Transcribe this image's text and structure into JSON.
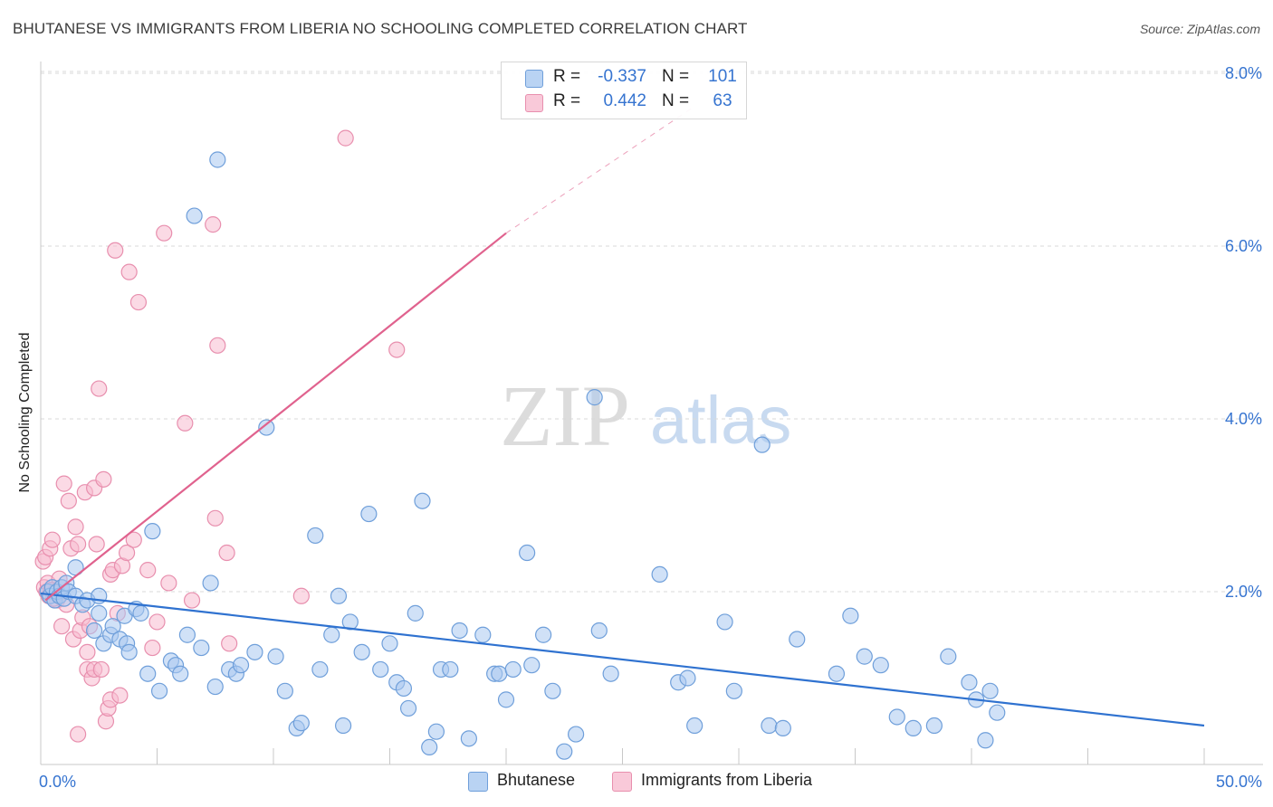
{
  "header": {
    "title": "BHUTANESE VS IMMIGRANTS FROM LIBERIA NO SCHOOLING COMPLETED CORRELATION CHART",
    "source": "Source: ZipAtlas.com"
  },
  "watermark": {
    "zip": "ZIP",
    "atlas": "atlas"
  },
  "legend_top": {
    "rows": [
      {
        "r_label": "R =",
        "r_value": "-0.337",
        "n_label": "N =",
        "n_value": "101"
      },
      {
        "r_label": "R =",
        "r_value": "0.442",
        "n_label": "N =",
        "n_value": "63"
      }
    ]
  },
  "legend_bottom": {
    "series1": "Bhutanese",
    "series2": "Immigrants from Liberia"
  },
  "colors": {
    "blue_fill": "#a9c8f0",
    "blue_stroke": "#6f9fda",
    "blue_line": "#2f72d0",
    "pink_fill": "#f7bcd0",
    "pink_stroke": "#e88fae",
    "pink_line": "#e0628e",
    "tick_text": "#3674d0",
    "grid": "#d9d9d9"
  },
  "chart_data": {
    "type": "scatter",
    "title": "BHUTANESE VS IMMIGRANTS FROM LIBERIA NO SCHOOLING COMPLETED CORRELATION CHART",
    "xlabel": "",
    "ylabel": "No Schooling Completed",
    "xlim": [
      0,
      50
    ],
    "ylim": [
      0,
      8.4
    ],
    "x_tick_labels": [
      "0.0%",
      "50.0%"
    ],
    "y_ticks": [
      2,
      4,
      6,
      8
    ],
    "y_tick_labels": [
      "2.0%",
      "4.0%",
      "6.0%",
      "8.0%"
    ],
    "grid": true,
    "legend_position": "top-center",
    "series": [
      {
        "name": "Bhutanese",
        "r": -0.337,
        "n": 101,
        "trend": {
          "x": [
            0,
            50
          ],
          "y": [
            1.98,
            0.45
          ]
        },
        "points": [
          [
            0.3,
            2.0
          ],
          [
            0.4,
            1.95
          ],
          [
            0.5,
            2.05
          ],
          [
            0.6,
            1.9
          ],
          [
            0.7,
            2.0
          ],
          [
            0.8,
            1.95
          ],
          [
            0.9,
            2.05
          ],
          [
            1.0,
            1.92
          ],
          [
            1.1,
            2.1
          ],
          [
            1.2,
            2.0
          ],
          [
            1.5,
            2.28
          ],
          [
            1.5,
            1.95
          ],
          [
            1.8,
            1.85
          ],
          [
            2.0,
            1.9
          ],
          [
            2.3,
            1.55
          ],
          [
            2.5,
            1.75
          ],
          [
            2.5,
            1.95
          ],
          [
            2.7,
            1.4
          ],
          [
            3.0,
            1.5
          ],
          [
            3.1,
            1.6
          ],
          [
            3.4,
            1.45
          ],
          [
            3.6,
            1.72
          ],
          [
            3.7,
            1.4
          ],
          [
            3.8,
            1.3
          ],
          [
            4.1,
            1.8
          ],
          [
            4.3,
            1.75
          ],
          [
            4.6,
            1.05
          ],
          [
            4.8,
            2.7
          ],
          [
            5.1,
            0.85
          ],
          [
            5.6,
            1.2
          ],
          [
            5.8,
            1.15
          ],
          [
            6.0,
            1.05
          ],
          [
            6.3,
            1.5
          ],
          [
            6.6,
            6.35
          ],
          [
            6.9,
            1.35
          ],
          [
            7.3,
            2.1
          ],
          [
            7.5,
            0.9
          ],
          [
            7.6,
            7.0
          ],
          [
            8.1,
            1.1
          ],
          [
            8.4,
            1.05
          ],
          [
            8.6,
            1.15
          ],
          [
            9.2,
            1.3
          ],
          [
            9.7,
            3.9
          ],
          [
            10.1,
            1.25
          ],
          [
            10.5,
            0.85
          ],
          [
            11.0,
            0.42
          ],
          [
            11.2,
            0.48
          ],
          [
            11.8,
            2.65
          ],
          [
            12.0,
            1.1
          ],
          [
            12.5,
            1.5
          ],
          [
            12.8,
            1.95
          ],
          [
            13.0,
            0.45
          ],
          [
            13.3,
            1.65
          ],
          [
            13.8,
            1.3
          ],
          [
            14.1,
            2.9
          ],
          [
            14.6,
            1.1
          ],
          [
            15.0,
            1.4
          ],
          [
            15.3,
            0.95
          ],
          [
            15.6,
            0.88
          ],
          [
            15.8,
            0.65
          ],
          [
            16.1,
            1.75
          ],
          [
            16.4,
            3.05
          ],
          [
            16.7,
            0.2
          ],
          [
            17.0,
            0.38
          ],
          [
            17.2,
            1.1
          ],
          [
            17.6,
            1.1
          ],
          [
            18.0,
            1.55
          ],
          [
            18.4,
            0.3
          ],
          [
            19.0,
            1.5
          ],
          [
            19.5,
            1.05
          ],
          [
            19.7,
            1.05
          ],
          [
            20.0,
            0.75
          ],
          [
            20.3,
            1.1
          ],
          [
            20.9,
            2.45
          ],
          [
            21.1,
            1.15
          ],
          [
            21.6,
            1.5
          ],
          [
            22.0,
            0.85
          ],
          [
            22.5,
            0.15
          ],
          [
            23.0,
            0.35
          ],
          [
            23.8,
            4.25
          ],
          [
            24.0,
            1.55
          ],
          [
            24.5,
            1.05
          ],
          [
            26.6,
            2.2
          ],
          [
            27.4,
            0.95
          ],
          [
            27.8,
            1.0
          ],
          [
            28.1,
            0.45
          ],
          [
            29.4,
            1.65
          ],
          [
            29.8,
            0.85
          ],
          [
            31.0,
            3.7
          ],
          [
            31.3,
            0.45
          ],
          [
            31.9,
            0.42
          ],
          [
            32.5,
            1.45
          ],
          [
            34.2,
            1.05
          ],
          [
            34.8,
            1.72
          ],
          [
            35.4,
            1.25
          ],
          [
            36.1,
            1.15
          ],
          [
            36.8,
            0.55
          ],
          [
            37.5,
            0.42
          ],
          [
            38.4,
            0.45
          ],
          [
            39.0,
            1.25
          ],
          [
            39.9,
            0.95
          ],
          [
            40.2,
            0.75
          ],
          [
            40.6,
            0.28
          ],
          [
            40.8,
            0.85
          ],
          [
            41.1,
            0.6
          ]
        ]
      },
      {
        "name": "Immigrants from Liberia",
        "r": 0.442,
        "n": 63,
        "trend": {
          "x": [
            0.2,
            20.0
          ],
          "y": [
            1.9,
            6.15
          ]
        },
        "trend_dashed": {
          "x": [
            20.0,
            28.0
          ],
          "y": [
            6.15,
            7.6
          ]
        },
        "points": [
          [
            0.1,
            2.35
          ],
          [
            0.15,
            2.05
          ],
          [
            0.2,
            2.4
          ],
          [
            0.25,
            2.0
          ],
          [
            0.3,
            2.1
          ],
          [
            0.35,
            1.95
          ],
          [
            0.4,
            2.5
          ],
          [
            0.5,
            2.6
          ],
          [
            0.6,
            2.0
          ],
          [
            0.7,
            1.9
          ],
          [
            0.8,
            2.15
          ],
          [
            0.9,
            1.6
          ],
          [
            1.0,
            3.25
          ],
          [
            1.1,
            1.85
          ],
          [
            1.2,
            3.05
          ],
          [
            1.3,
            2.5
          ],
          [
            1.4,
            1.45
          ],
          [
            1.5,
            2.75
          ],
          [
            1.6,
            2.55
          ],
          [
            1.6,
            0.35
          ],
          [
            1.7,
            1.55
          ],
          [
            1.8,
            1.7
          ],
          [
            1.9,
            3.15
          ],
          [
            2.0,
            1.3
          ],
          [
            2.0,
            1.1
          ],
          [
            2.1,
            1.6
          ],
          [
            2.2,
            1.0
          ],
          [
            2.3,
            1.1
          ],
          [
            2.3,
            3.2
          ],
          [
            2.4,
            2.55
          ],
          [
            2.5,
            4.35
          ],
          [
            2.6,
            1.1
          ],
          [
            2.7,
            3.3
          ],
          [
            2.8,
            0.5
          ],
          [
            2.9,
            0.65
          ],
          [
            3.0,
            0.75
          ],
          [
            3.0,
            2.2
          ],
          [
            3.1,
            2.25
          ],
          [
            3.2,
            5.95
          ],
          [
            3.3,
            1.75
          ],
          [
            3.4,
            0.8
          ],
          [
            3.5,
            2.3
          ],
          [
            3.7,
            2.45
          ],
          [
            3.8,
            5.7
          ],
          [
            4.0,
            2.6
          ],
          [
            4.2,
            5.35
          ],
          [
            4.6,
            2.25
          ],
          [
            4.8,
            1.35
          ],
          [
            5.0,
            1.65
          ],
          [
            5.3,
            6.15
          ],
          [
            5.5,
            2.1
          ],
          [
            6.2,
            3.95
          ],
          [
            6.5,
            1.9
          ],
          [
            7.4,
            6.25
          ],
          [
            7.5,
            2.85
          ],
          [
            7.6,
            4.85
          ],
          [
            8.0,
            2.45
          ],
          [
            8.1,
            1.4
          ],
          [
            11.2,
            1.95
          ],
          [
            13.1,
            7.25
          ],
          [
            15.3,
            4.8
          ],
          [
            0.55,
            1.92
          ],
          [
            0.45,
            2.02
          ]
        ]
      }
    ]
  }
}
